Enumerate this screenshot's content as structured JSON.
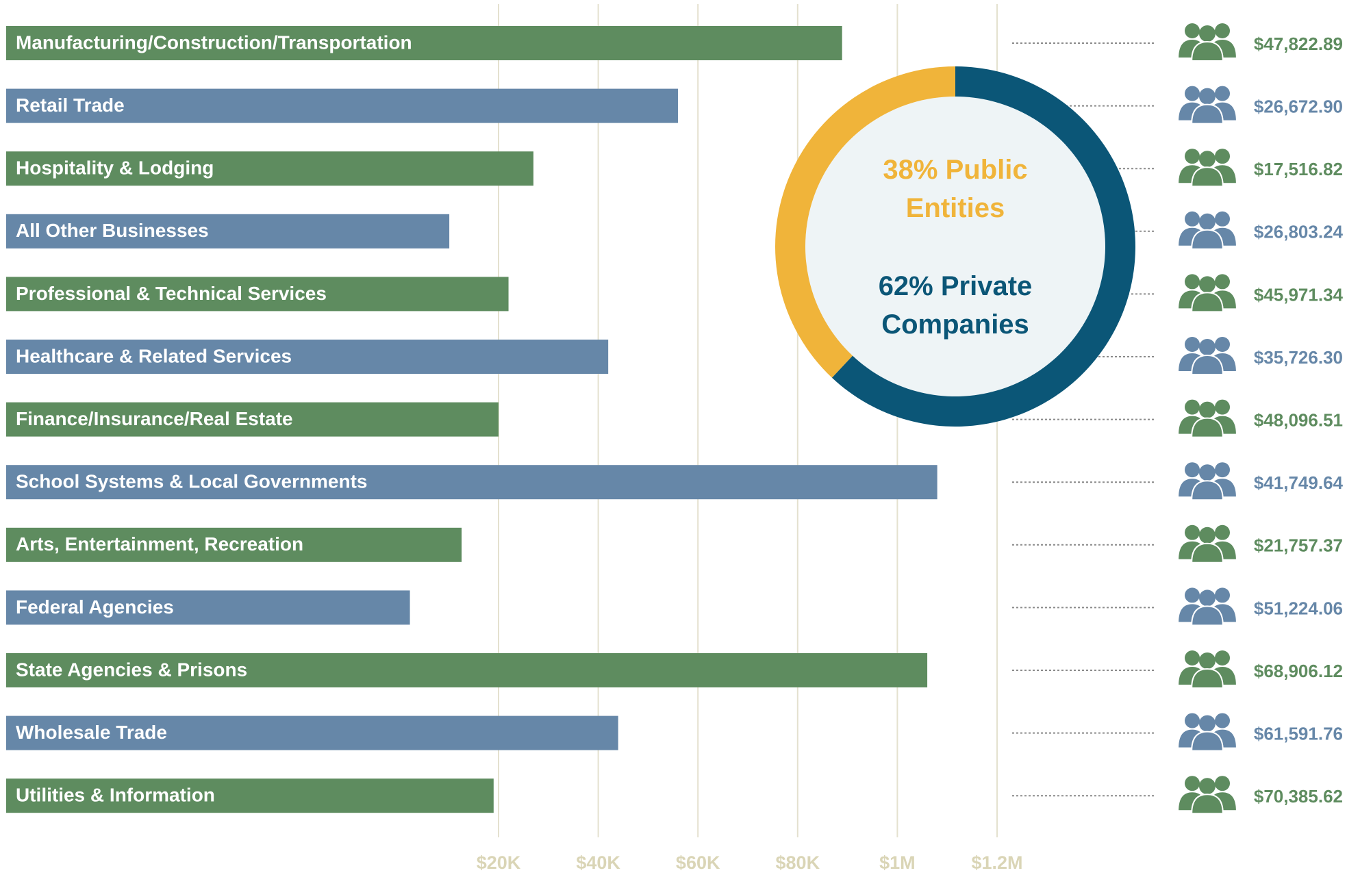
{
  "chart_data": [
    {
      "type": "bar",
      "orientation": "horizontal",
      "categories": [
        "Manufacturing/Construction/Transportation",
        "Retail Trade",
        "Hospitality & Lodging",
        "All Other Businesses",
        "Professional & Technical Services",
        "Healthcare & Related Services",
        "Finance/Insurance/Real Estate",
        "School Systems & Local Governments",
        "Arts, Entertainment, Recreation",
        "Federal Agencies",
        "State Agencies & Prisons",
        "Wholesale Trade",
        "Utilities & Information"
      ],
      "values": [
        490000,
        56000,
        27000,
        18000,
        22000,
        42000,
        20000,
        1080000,
        18500,
        16400,
        1060000,
        44000,
        19800
      ],
      "colors": [
        "#5e8c5f",
        "#6687a8",
        "#5e8c5f",
        "#6687a8",
        "#5e8c5f",
        "#6687a8",
        "#5e8c5f",
        "#6687a8",
        "#5e8c5f",
        "#6687a8",
        "#5e8c5f",
        "#6687a8",
        "#5e8c5f"
      ],
      "amounts": [
        47822.89,
        26672.9,
        17516.82,
        26803.24,
        45971.34,
        35726.3,
        48096.51,
        41749.64,
        21757.37,
        51224.06,
        68906.12,
        61591.76,
        70385.62
      ],
      "amount_labels": [
        "$47,822.89",
        "$26,672.90",
        "$17,516.82",
        "$26,803.24",
        "$45,971.34",
        "$35,726.30",
        "$48,096.51",
        "$41,749.64",
        "$21,757.37",
        "$51,224.06",
        "$68,906.12",
        "$61,591.76",
        "$70,385.62"
      ],
      "xlim": [
        0,
        1200000
      ],
      "xticks": [
        {
          "value": 20000,
          "label": "$20K"
        },
        {
          "value": 40000,
          "label": "$40K"
        },
        {
          "value": 60000,
          "label": "$60K"
        },
        {
          "value": 80000,
          "label": "$80K"
        },
        {
          "value": 1000000,
          "label": "$1M"
        },
        {
          "value": 1200000,
          "label": "$1.2M"
        }
      ],
      "grid": true
    },
    {
      "type": "donut",
      "categories": [
        "Public Entities",
        "Private Companies"
      ],
      "values": [
        38,
        62
      ],
      "value_labels": [
        "38%",
        "62%"
      ],
      "colors": [
        "#f0b43a",
        "#0b5677"
      ]
    }
  ]
}
